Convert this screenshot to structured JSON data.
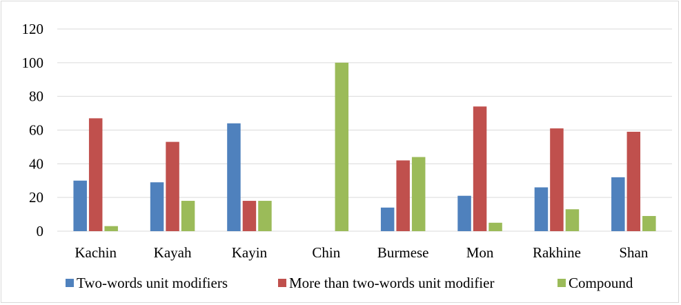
{
  "chart_data": {
    "type": "bar",
    "title": "",
    "xlabel": "",
    "ylabel": "",
    "categories": [
      "Kachin",
      "Kayah",
      "Kayin",
      "Chin",
      "Burmese",
      "Mon",
      "Rakhine",
      "Shan"
    ],
    "series": [
      {
        "name": "Two-words unit modifiers",
        "color": "#4f81bd",
        "values": [
          30,
          29,
          64,
          0,
          14,
          21,
          26,
          32
        ]
      },
      {
        "name": "More than two-words unit modifier",
        "color": "#c0504d",
        "values": [
          67,
          53,
          18,
          0,
          42,
          74,
          61,
          59
        ]
      },
      {
        "name": "Compound",
        "color": "#9bbb59",
        "values": [
          3,
          18,
          18,
          100,
          44,
          5,
          13,
          9
        ]
      }
    ],
    "ylim": [
      0,
      120
    ],
    "yticks": [
      0,
      20,
      40,
      60,
      80,
      100,
      120
    ],
    "grid": true,
    "legend_position": "bottom"
  }
}
